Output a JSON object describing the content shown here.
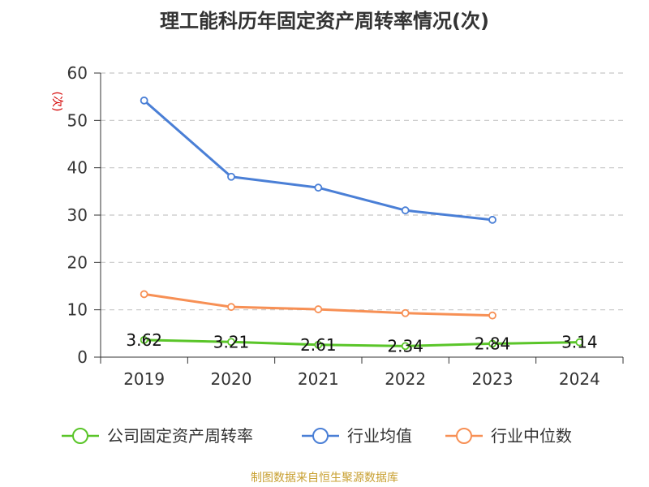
{
  "chart_data": {
    "type": "line",
    "title": "理工能科历年固定资产周转率情况(次)",
    "ylabel": "(次)",
    "categories": [
      "2019",
      "2020",
      "2021",
      "2022",
      "2023",
      "2024"
    ],
    "ylim": [
      0,
      60
    ],
    "yticks": [
      0,
      10,
      20,
      30,
      40,
      50,
      60
    ],
    "grid": true,
    "legend_position": "bottom",
    "series": [
      {
        "name": "公司固定资产周转率",
        "color": "#5ac529",
        "values": [
          3.62,
          3.21,
          2.61,
          2.34,
          2.84,
          3.14
        ],
        "data_labels": [
          "3.62",
          "3.21",
          "2.61",
          "2.34",
          "2.84",
          "3.14"
        ]
      },
      {
        "name": "行业均值",
        "color": "#4a7fd6",
        "values": [
          54.2,
          38.1,
          35.8,
          31.0,
          29.0,
          null
        ]
      },
      {
        "name": "行业中位数",
        "color": "#f79055",
        "values": [
          13.3,
          10.6,
          10.1,
          9.3,
          8.8,
          null
        ]
      }
    ]
  },
  "source_note": "制图数据来自恒生聚源数据库"
}
